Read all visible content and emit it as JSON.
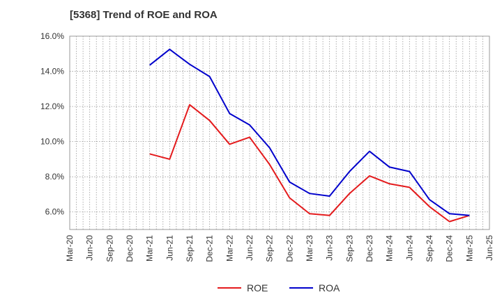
{
  "chart_data": {
    "type": "line",
    "title": "[5368]  Trend of ROE and ROA",
    "xlabel": "",
    "ylabel": "",
    "ylim": [
      5.0,
      16.0
    ],
    "yticks": [
      "6.0%",
      "8.0%",
      "10.0%",
      "12.0%",
      "14.0%",
      "16.0%"
    ],
    "ytick_values": [
      6,
      8,
      10,
      12,
      14,
      16
    ],
    "categories": [
      "Mar-20",
      "Jun-20",
      "Sep-20",
      "Dec-20",
      "Mar-21",
      "Jun-21",
      "Sep-21",
      "Dec-21",
      "Mar-22",
      "Jun-22",
      "Sep-22",
      "Dec-22",
      "Mar-23",
      "Jun-23",
      "Sep-23",
      "Dec-23",
      "Mar-24",
      "Jun-24",
      "Sep-24",
      "Dec-24",
      "Mar-25",
      "Jun-25"
    ],
    "grid": true,
    "legend_position": "bottom-center",
    "series": [
      {
        "name": "ROE",
        "color": "#e41a1c",
        "values": [
          null,
          null,
          null,
          null,
          9.3,
          9.0,
          12.1,
          11.2,
          9.85,
          10.25,
          8.7,
          6.8,
          5.9,
          5.8,
          7.05,
          8.05,
          7.6,
          7.4,
          6.3,
          5.45,
          5.8,
          null
        ]
      },
      {
        "name": "ROA",
        "color": "#0000cc",
        "values": [
          null,
          null,
          null,
          null,
          14.35,
          15.25,
          14.4,
          13.7,
          11.6,
          10.95,
          9.65,
          7.7,
          7.05,
          6.9,
          8.3,
          9.45,
          8.55,
          8.3,
          6.7,
          5.9,
          5.8,
          null
        ]
      }
    ]
  }
}
